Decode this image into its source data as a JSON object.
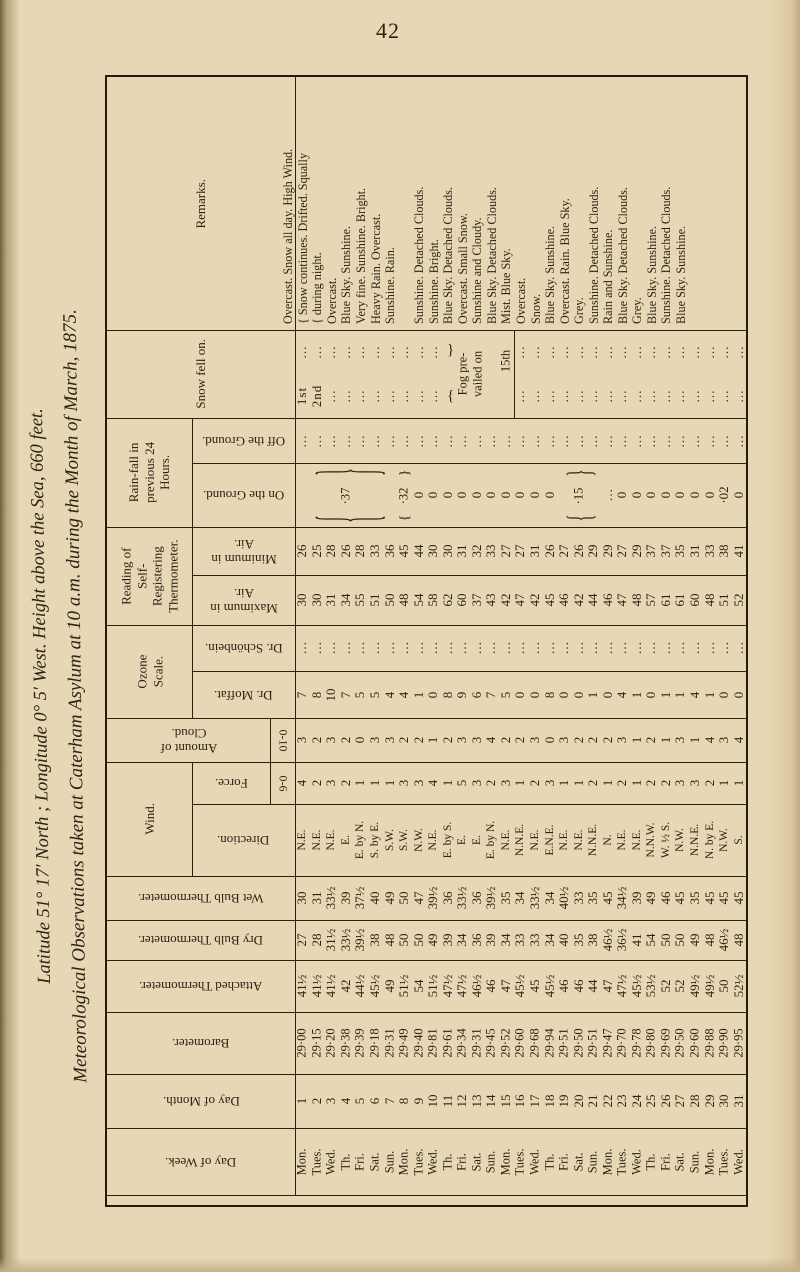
{
  "page": {
    "number": "42"
  },
  "title": {
    "line1": "Meteorological Observations taken at Caterham Asylum at 10 a.m. during the Month of March, 1875.",
    "line2": "Latitude 51° 17′ North ;  Longitude 0° 5′ West.   Height above the Sea, 660 feet."
  },
  "punct": {
    "open_brace": "{",
    "close_brace": "}"
  },
  "table": {
    "headers": {
      "remarks": "Remarks.",
      "snow": "Snow fell on.",
      "rain_group": "Rain-fall in\nprevious 24\nHours.",
      "rain_off": "Off the Ground.",
      "rain_on": "On the Ground.",
      "selfreg_group": "Reading of Self-\nRegistering\nThermometer.",
      "min_air": "Minimum in Air.",
      "max_air": "Maximum in Air.",
      "ozone_group": "Ozone\nScale.",
      "schonbein": "Dr. Schönbein.",
      "moffat": "Dr. Moffat.",
      "cloud": "Amount of Cloud.",
      "cloud_scale": "0-10",
      "wind_group": "Wind.",
      "force": "Force.",
      "force_scale": "0-6",
      "direction": "Direction.",
      "wet": "Wet Bulb Thermometer.",
      "dry": "Dry Bulb Thermometer.",
      "attached": "Attached Thermometer.",
      "barometer": "Barometer.",
      "day_month": "Day of Month.",
      "day_week": "Day of Week."
    },
    "overlays": {
      "rain": {
        "seg1_label": "·37",
        "seg2_label": "·32",
        "seg3_label": "·15"
      },
      "fog": {
        "line1": "Fog pre-",
        "line2": "vailed on",
        "date": "15th"
      }
    },
    "bands": {
      "remarks": {
        "values": [
          "Overcast.  Snow all day.  High Wind.",
          "{ Snow continues.  Drifted.  Squally",
          "{ during night.",
          "Overcast.",
          "Blue Sky.  Sunshine.",
          "Very fine.  Sunshine.  Bright.",
          "Heavy Rain.  Overcast.",
          "Sunshine.  Rain.",
          "",
          "Sunshine.  Detached Clouds.",
          "Sunshine.  Bright.",
          "Blue Sky.  Detached Clouds.",
          "Overcast.  Small Snow.",
          "Sunshine and Cloudy.",
          "Blue Sky.  Detached Clouds.",
          "Mist.  Blue Sky.",
          "Overcast.",
          "Snow.",
          "Blue Sky.  Sunshine.",
          "Overcast.  Rain.  Blue Sky.",
          "Grey.",
          "Sunshine.  Detached Clouds.",
          "Rain and Sunshine.",
          "Blue Sky.  Detached Clouds.",
          "Grey.",
          "Blue Sky.  Sunshine.",
          "Sunshine.  Detached Clouds.",
          "Blue Sky.  Sunshine.",
          "",
          "",
          ""
        ]
      },
      "snow_upper": {
        "values": [
          "…",
          "…",
          "…",
          "…",
          "…",
          "…",
          "…",
          "…",
          "…",
          "…",
          "",
          "",
          "",
          "",
          "",
          "…",
          "…",
          "…",
          "…",
          "…",
          "…",
          "…",
          "…",
          "…",
          "…",
          "…",
          "…",
          "…",
          "…",
          "…",
          "…"
        ]
      },
      "snow_lower": {
        "values": [
          "1st",
          "2nd",
          "…",
          "…",
          "…",
          "…",
          "…",
          "…",
          "…",
          "…",
          "",
          "",
          "",
          "",
          "",
          "…",
          "…",
          "…",
          "…",
          "…",
          "…",
          "…",
          "…",
          "…",
          "…",
          "…",
          "…",
          "…",
          "…",
          "…",
          "…"
        ]
      },
      "rain_off": {
        "values": [
          "…",
          "…",
          "…",
          "…",
          "…",
          "…",
          "…",
          "…",
          "…",
          "…",
          "…",
          "…",
          "…",
          "…",
          "…",
          "…",
          "…",
          "…",
          "…",
          "…",
          "…",
          "…",
          "…",
          "…",
          "…",
          "…",
          "…",
          "…",
          "…",
          "…",
          "…"
        ]
      },
      "rain_on": {
        "values": [
          "",
          "",
          "",
          "",
          "",
          "",
          "",
          "",
          "0",
          "0",
          "0",
          "0",
          "0",
          "0",
          "0",
          "0",
          "0",
          "0",
          "",
          "",
          "",
          "…",
          "0",
          "0",
          "0",
          "0",
          "0",
          "0",
          "0",
          "·02",
          "0"
        ]
      },
      "min_air": {
        "values": [
          "26",
          "25",
          "28",
          "26",
          "28",
          "33",
          "36",
          "45",
          "44",
          "30",
          "30",
          "31",
          "32",
          "33",
          "27",
          "27",
          "31",
          "26",
          "27",
          "26",
          "29",
          "29",
          "27",
          "29",
          "37",
          "37",
          "35",
          "31",
          "33",
          "38",
          "41"
        ]
      },
      "max_air": {
        "values": [
          "30",
          "30",
          "31",
          "34",
          "55",
          "51",
          "50",
          "48",
          "54",
          "58",
          "62",
          "60",
          "37",
          "43",
          "42",
          "47",
          "42",
          "45",
          "46",
          "42",
          "44",
          "46",
          "47",
          "48",
          "57",
          "61",
          "61",
          "60",
          "48",
          "51",
          "52"
        ]
      },
      "schonbein": {
        "values": [
          "…",
          "…",
          "…",
          "…",
          "…",
          "…",
          "…",
          "…",
          "…",
          "…",
          "…",
          "…",
          "…",
          "…",
          "…",
          "…",
          "…",
          "…",
          "…",
          "…",
          "…",
          "…",
          "…",
          "…",
          "…",
          "…",
          "…",
          "…",
          "…",
          "…",
          "…"
        ]
      },
      "moffat": {
        "values": [
          "7",
          "8",
          "10",
          "7",
          "5",
          "5",
          "4",
          "4",
          "1",
          "0",
          "8",
          "9",
          "6",
          "7",
          "5",
          "0",
          "0",
          "8",
          "0",
          "0",
          "1",
          "0",
          "4",
          "1",
          "0",
          "1",
          "1",
          "4",
          "1",
          "0",
          "0"
        ]
      },
      "cloud": {
        "values": [
          "3",
          "2",
          "3",
          "2",
          "0",
          "3",
          "3",
          "2",
          "2",
          "1",
          "2",
          "3",
          "3",
          "4",
          "2",
          "2",
          "3",
          "0",
          "3",
          "2",
          "2",
          "2",
          "3",
          "1",
          "2",
          "1",
          "3",
          "1",
          "4",
          "3",
          "4"
        ]
      },
      "force": {
        "values": [
          "4",
          "2",
          "3",
          "2",
          "1",
          "1",
          "1",
          "3",
          "3",
          "4",
          "1",
          "5",
          "3",
          "2",
          "3",
          "1",
          "2",
          "3",
          "1",
          "1",
          "2",
          "1",
          "2",
          "1",
          "2",
          "2",
          "3",
          "3",
          "2",
          "1",
          "1"
        ]
      },
      "direction": {
        "values": [
          "N.E.",
          "N.E.",
          "N.E.",
          "E.",
          "E. by N.",
          "S. by E.",
          "S.W.",
          "S.W.",
          "N.W.",
          "N.E.",
          "E. by S.",
          "E.",
          "E.",
          "E. by N.",
          "N.E.",
          "N.N.E.",
          "N.E.",
          "E.N.E.",
          "N.E.",
          "N.E.",
          "N.N.E.",
          "N.",
          "N.E.",
          "N.E.",
          "N.N.W.",
          "W. ½ S.",
          "N.W.",
          "N.N.E.",
          "N. by E.",
          "N.W.",
          "S."
        ]
      },
      "wet": {
        "values": [
          "30",
          "31",
          "33½",
          "39",
          "37½",
          "40",
          "49",
          "50",
          "47",
          "39½",
          "36",
          "33½",
          "36",
          "39½",
          "35",
          "34",
          "33½",
          "34",
          "40½",
          "33",
          "35",
          "45",
          "34½",
          "39",
          "49",
          "46",
          "45",
          "35",
          "45",
          "45",
          "45"
        ]
      },
      "dry": {
        "values": [
          "27",
          "28",
          "31½",
          "33½",
          "39½",
          "38",
          "48",
          "50",
          "50",
          "49",
          "39",
          "34",
          "36",
          "39",
          "34",
          "33",
          "33",
          "34",
          "40",
          "35",
          "38",
          "46½",
          "36½",
          "41",
          "54",
          "50",
          "50",
          "49",
          "48",
          "46½",
          "48"
        ]
      },
      "attached": {
        "values": [
          "41½",
          "41½",
          "41½",
          "42",
          "44½",
          "45½",
          "49",
          "51½",
          "54",
          "51½",
          "47½",
          "47½",
          "46½",
          "46",
          "47",
          "45½",
          "45",
          "45½",
          "46",
          "46",
          "44",
          "47",
          "47½",
          "45½",
          "53½",
          "52",
          "52",
          "49½",
          "49½",
          "50",
          "52½"
        ]
      },
      "barometer": {
        "values": [
          "29·00",
          "29·15",
          "29·20",
          "29·38",
          "29·39",
          "29·18",
          "29·31",
          "29·49",
          "29·40",
          "29·81",
          "29·61",
          "29·34",
          "29·31",
          "29·45",
          "29·52",
          "29·60",
          "29·68",
          "29·94",
          "29·51",
          "29·50",
          "29·51",
          "29·47",
          "29·70",
          "29·78",
          "29·80",
          "29·69",
          "29·50",
          "29·60",
          "29·88",
          "29·90",
          "29·95"
        ]
      },
      "day_month": {
        "values": [
          "1",
          "2",
          "3",
          "4",
          "5",
          "6",
          "7",
          "8",
          "9",
          "10",
          "11",
          "12",
          "13",
          "14",
          "15",
          "16",
          "17",
          "18",
          "19",
          "20",
          "21",
          "22",
          "23",
          "24",
          "25",
          "26",
          "27",
          "28",
          "29",
          "30",
          "31"
        ]
      },
      "day_week": {
        "values": [
          "Mon.",
          "Tues.",
          "Wed.",
          "Th.",
          "Fri.",
          "Sat.",
          "Sun.",
          "Mon.",
          "Tues.",
          "Wed.",
          "Th.",
          "Fri.",
          "Sat.",
          "Sun.",
          "Mon.",
          "Tues.",
          "Wed.",
          "Th.",
          "Fri.",
          "Sat.",
          "Sun.",
          "Mon.",
          "Tues.",
          "Wed.",
          "Th.",
          "Fri.",
          "Sat.",
          "Sun.",
          "Mon.",
          "Tues.",
          "Wed."
        ]
      }
    }
  }
}
